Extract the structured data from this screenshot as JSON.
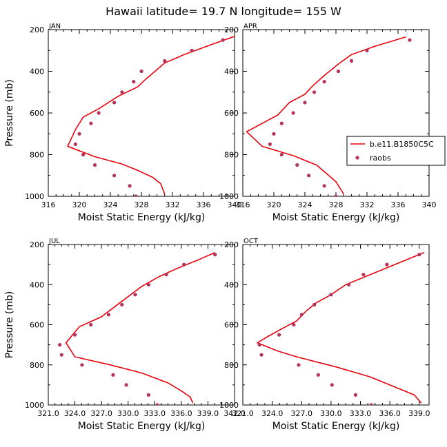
{
  "figure": {
    "title": "Hawaii  latitude= 19.7 N longitude= 155 W"
  },
  "legend": {
    "model_label": "b.e11.B1850C5C",
    "obs_label": "raobs",
    "model_color": "#e8000b",
    "obs_color": "#b5325a"
  },
  "chart_data": [
    {
      "type": "line",
      "panel": "JAN",
      "xlabel": "Moist Static Energy (kJ/kg)",
      "ylabel": "Pressure (mb)",
      "xlim": [
        316,
        340
      ],
      "ylim": [
        200,
        1000
      ],
      "y_inverted": true,
      "xticks": [
        316,
        320,
        324,
        328,
        332,
        336,
        340
      ],
      "xticklabels": [
        "316",
        "320",
        "324",
        "328",
        "332",
        "336",
        "340"
      ],
      "yticks": [
        200,
        400,
        600,
        800,
        1000
      ],
      "yticklabels": [
        "200",
        "400",
        "600",
        "800",
        "1000"
      ],
      "series": [
        {
          "name": "b.e11.B1850C5C",
          "kind": "line",
          "points": [
            [
              340.2,
              230
            ],
            [
              337.5,
              265
            ],
            [
              333.5,
              320
            ],
            [
              331.0,
              360
            ],
            [
              328.5,
              440
            ],
            [
              327.5,
              475
            ],
            [
              325.0,
              520
            ],
            [
              322.5,
              580
            ],
            [
              320.5,
              620
            ],
            [
              319.5,
              680
            ],
            [
              318.5,
              760
            ],
            [
              322.0,
              810
            ],
            [
              325.5,
              845
            ],
            [
              327.5,
              875
            ],
            [
              329.5,
              910
            ],
            [
              330.5,
              940
            ],
            [
              331.0,
              990
            ]
          ]
        },
        {
          "name": "raobs",
          "kind": "scatter",
          "points": [
            [
              338.5,
              250
            ],
            [
              334.5,
              300
            ],
            [
              331.0,
              350
            ],
            [
              328.0,
              400
            ],
            [
              327.0,
              450
            ],
            [
              325.5,
              500
            ],
            [
              324.5,
              550
            ],
            [
              322.5,
              600
            ],
            [
              321.5,
              650
            ],
            [
              320.0,
              700
            ],
            [
              319.5,
              750
            ],
            [
              320.5,
              800
            ],
            [
              322.0,
              850
            ],
            [
              324.5,
              900
            ],
            [
              326.5,
              950
            ],
            [
              327.3,
              1000
            ]
          ]
        }
      ]
    },
    {
      "type": "line",
      "panel": "APR",
      "xlabel": "Moist Static Energy (kJ/kg)",
      "ylabel": "",
      "xlim": [
        316,
        340
      ],
      "ylim": [
        200,
        1000
      ],
      "y_inverted": true,
      "xticks": [
        316,
        320,
        324,
        328,
        332,
        336,
        340
      ],
      "xticklabels": [
        "316",
        "320",
        "324",
        "328",
        "332",
        "336",
        "340"
      ],
      "yticks": [
        200,
        400,
        600,
        800,
        1000
      ],
      "yticklabels": [
        "200",
        "400",
        "600",
        "800",
        "1000"
      ],
      "series": [
        {
          "name": "b.e11.B1850C5C",
          "kind": "line",
          "points": [
            [
              337.0,
              235
            ],
            [
              333.0,
              280
            ],
            [
              330.0,
              320
            ],
            [
              328.5,
              360
            ],
            [
              326.5,
              420
            ],
            [
              325.0,
              470
            ],
            [
              324.0,
              510
            ],
            [
              322.0,
              550
            ],
            [
              320.5,
              610
            ],
            [
              316.5,
              690
            ],
            [
              318.5,
              760
            ],
            [
              322.5,
              805
            ],
            [
              325.5,
              850
            ],
            [
              328.0,
              930
            ],
            [
              329.0,
              990
            ]
          ]
        },
        {
          "name": "raobs",
          "kind": "scatter",
          "points": [
            [
              337.5,
              250
            ],
            [
              332.0,
              300
            ],
            [
              330.0,
              350
            ],
            [
              328.3,
              400
            ],
            [
              326.5,
              450
            ],
            [
              325.2,
              500
            ],
            [
              324.0,
              550
            ],
            [
              322.5,
              600
            ],
            [
              321.0,
              650
            ],
            [
              320.0,
              700
            ],
            [
              319.5,
              750
            ],
            [
              321.0,
              800
            ],
            [
              323.0,
              850
            ],
            [
              324.5,
              900
            ],
            [
              326.5,
              950
            ],
            [
              328.0,
              1000
            ]
          ]
        }
      ]
    },
    {
      "type": "line",
      "panel": "JUL",
      "xlabel": "Moist Static Energy (kJ/kg)",
      "ylabel": "Pressure (mb)",
      "xlim": [
        321.0,
        342.0
      ],
      "ylim": [
        200,
        1000
      ],
      "y_inverted": true,
      "xticks": [
        321.0,
        324.0,
        327.0,
        330.0,
        333.0,
        336.0,
        339.0,
        342.0
      ],
      "xticklabels": [
        "321.0",
        "324.0",
        "327.0",
        "330.0",
        "333.0",
        "336.0",
        "339.0",
        "342.0"
      ],
      "yticks": [
        200,
        400,
        600,
        800,
        1000
      ],
      "yticklabels": [
        "200",
        "400",
        "600",
        "800",
        "1000"
      ],
      "series": [
        {
          "name": "b.e11.B1850C5C",
          "kind": "line",
          "points": [
            [
              339.8,
              240
            ],
            [
              338.0,
              275
            ],
            [
              335.5,
              320
            ],
            [
              333.5,
              360
            ],
            [
              331.5,
              410
            ],
            [
              330.0,
              460
            ],
            [
              328.5,
              510
            ],
            [
              327.0,
              560
            ],
            [
              325.5,
              590
            ],
            [
              324.5,
              610
            ],
            [
              323.0,
              690
            ],
            [
              324.0,
              760
            ],
            [
              328.0,
              800
            ],
            [
              331.5,
              840
            ],
            [
              334.5,
              890
            ],
            [
              336.0,
              930
            ],
            [
              337.0,
              960
            ],
            [
              337.3,
              990
            ]
          ]
        },
        {
          "name": "raobs",
          "kind": "scatter",
          "points": [
            [
              339.8,
              250
            ],
            [
              336.3,
              300
            ],
            [
              334.3,
              350
            ],
            [
              332.3,
              400
            ],
            [
              330.8,
              450
            ],
            [
              329.3,
              500
            ],
            [
              327.8,
              550
            ],
            [
              325.8,
              600
            ],
            [
              324.0,
              650
            ],
            [
              322.3,
              700
            ],
            [
              322.5,
              750
            ],
            [
              324.8,
              800
            ],
            [
              328.3,
              850
            ],
            [
              329.8,
              900
            ],
            [
              332.3,
              950
            ],
            [
              333.3,
              1000
            ]
          ]
        }
      ]
    },
    {
      "type": "line",
      "panel": "OCT",
      "xlabel": "Moist Static Energy (kJ/kg)",
      "ylabel": "",
      "xlim": [
        321.0,
        340.0
      ],
      "ylim": [
        200,
        1000
      ],
      "y_inverted": true,
      "xticks": [
        321.0,
        324.0,
        327.0,
        330.0,
        333.0,
        336.0,
        339.0
      ],
      "xticklabels": [
        "321.0",
        "324.0",
        "327.0",
        "330.0",
        "333.0",
        "336.0",
        "339.0"
      ],
      "yticks": [
        200,
        400,
        600,
        800,
        1000
      ],
      "yticklabels": [
        "200",
        "400",
        "600",
        "800",
        "1000"
      ],
      "series": [
        {
          "name": "b.e11.B1850C5C",
          "kind": "line",
          "points": [
            [
              339.5,
              240
            ],
            [
              336.5,
              300
            ],
            [
              333.5,
              360
            ],
            [
              331.5,
              400
            ],
            [
              330.0,
              450
            ],
            [
              328.5,
              490
            ],
            [
              327.5,
              530
            ],
            [
              326.5,
              580
            ],
            [
              325.0,
              620
            ],
            [
              323.5,
              660
            ],
            [
              322.5,
              690
            ],
            [
              324.5,
              730
            ],
            [
              326.5,
              760
            ],
            [
              330.5,
              810
            ],
            [
              334.0,
              860
            ],
            [
              337.0,
              920
            ],
            [
              338.5,
              950
            ],
            [
              339.2,
              990
            ]
          ]
        },
        {
          "name": "raobs",
          "kind": "scatter",
          "points": [
            [
              339.0,
              250
            ],
            [
              335.7,
              300
            ],
            [
              333.3,
              350
            ],
            [
              331.8,
              400
            ],
            [
              330.0,
              450
            ],
            [
              328.3,
              500
            ],
            [
              327.0,
              550
            ],
            [
              326.2,
              600
            ],
            [
              324.7,
              650
            ],
            [
              322.7,
              700
            ],
            [
              322.9,
              750
            ],
            [
              326.7,
              800
            ],
            [
              328.7,
              850
            ],
            [
              330.1,
              900
            ],
            [
              332.5,
              950
            ],
            [
              334.1,
              1000
            ]
          ]
        }
      ]
    }
  ]
}
